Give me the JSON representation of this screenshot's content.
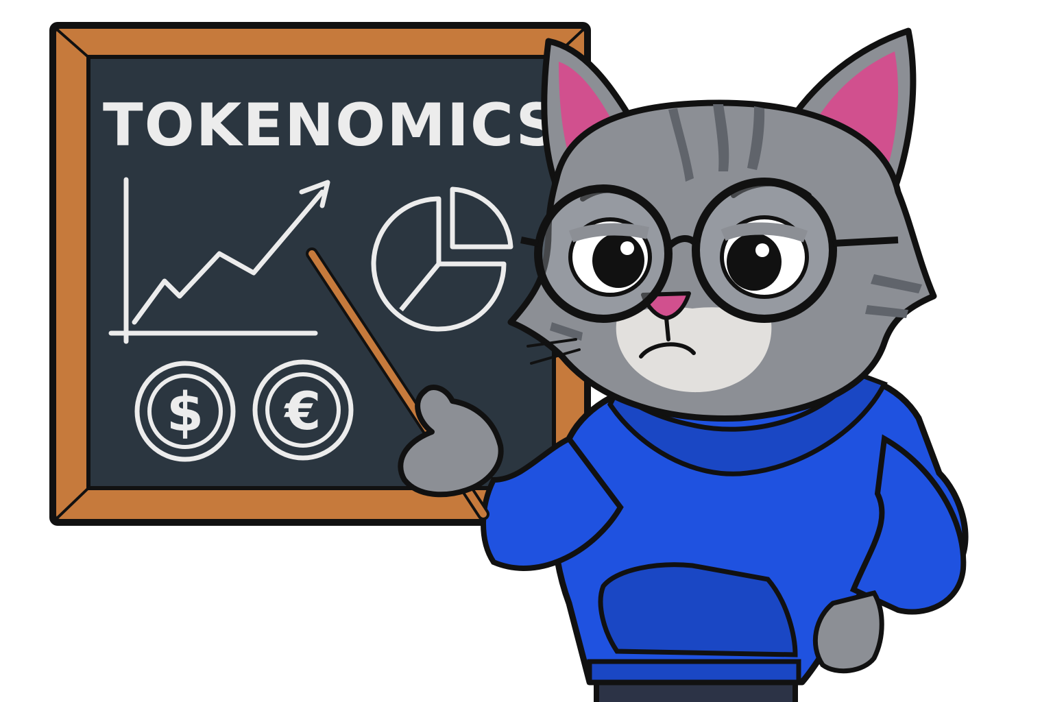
{
  "board": {
    "title": "TOKENOMICS",
    "coins": {
      "dollar": "$",
      "euro": "€"
    }
  },
  "colors": {
    "chalkboard": "#2b3640",
    "frame": "#c67a3c",
    "hoodie": "#1f52e0",
    "fur": "#8c8f95",
    "ear_inner": "#d1508e",
    "chalk": "#ececec",
    "outline": "#111111"
  },
  "icons": [
    "line-chart-icon",
    "pie-chart-icon",
    "dollar-coin-icon",
    "euro-coin-icon",
    "pointer-stick-icon"
  ]
}
